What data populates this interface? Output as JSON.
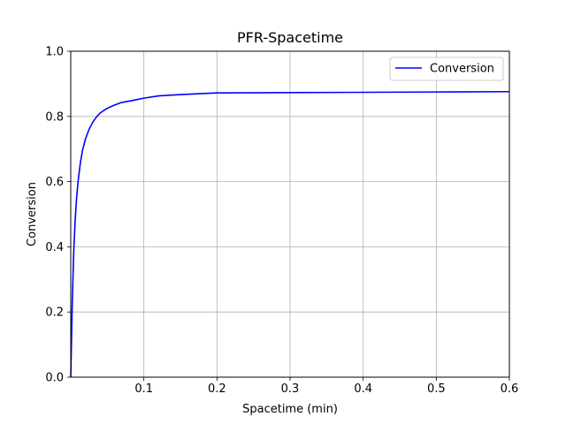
{
  "chart_data": {
    "type": "line",
    "title": "PFR-Spacetime",
    "xlabel": "Spacetime (min)",
    "ylabel": "Conversion",
    "xlim": [
      0,
      0.6
    ],
    "ylim": [
      0.0,
      1.0
    ],
    "xticks": [
      0.1,
      0.2,
      0.3,
      0.4,
      0.5,
      0.6
    ],
    "xtick_labels": [
      "0.1",
      "0.2",
      "0.3",
      "0.4",
      "0.5",
      "0.6"
    ],
    "yticks": [
      0.0,
      0.2,
      0.4,
      0.6,
      0.8,
      1.0
    ],
    "ytick_labels": [
      "0.0",
      "0.2",
      "0.4",
      "0.6",
      "0.8",
      "1.0"
    ],
    "grid": true,
    "legend_position": "upper right",
    "series": [
      {
        "name": "Conversion",
        "color": "#0000ff",
        "x": [
          0,
          0.002,
          0.004,
          0.006,
          0.008,
          0.01,
          0.013,
          0.016,
          0.02,
          0.025,
          0.03,
          0.035,
          0.04,
          0.045,
          0.05,
          0.055,
          0.06,
          0.07,
          0.085,
          0.1,
          0.12,
          0.15,
          0.2,
          0.3,
          0.4,
          0.5,
          0.6
        ],
        "y": [
          0.0,
          0.22,
          0.38,
          0.48,
          0.55,
          0.6,
          0.655,
          0.695,
          0.73,
          0.76,
          0.782,
          0.798,
          0.81,
          0.818,
          0.825,
          0.83,
          0.835,
          0.843,
          0.849,
          0.856,
          0.863,
          0.867,
          0.872,
          0.873,
          0.874,
          0.875,
          0.876
        ]
      }
    ]
  }
}
